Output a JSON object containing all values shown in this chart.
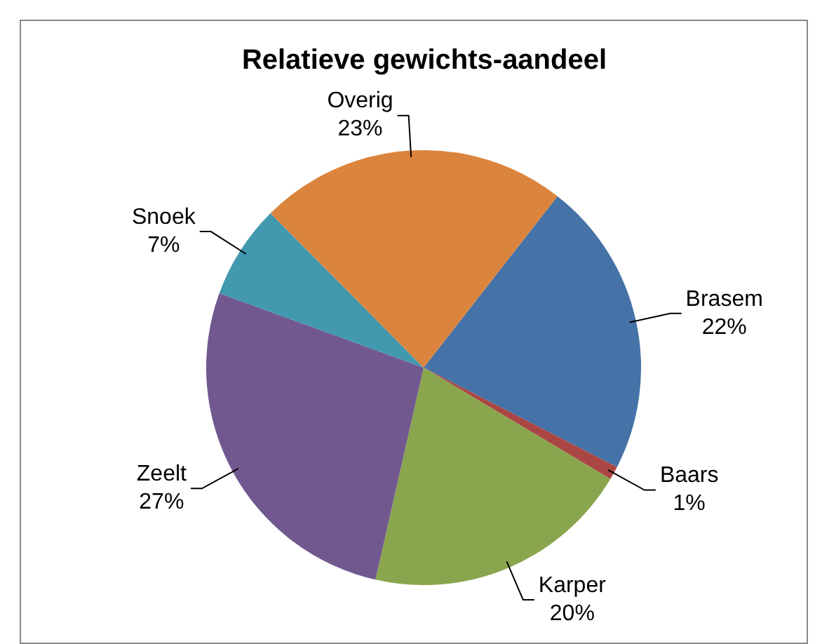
{
  "chart_data": {
    "type": "pie",
    "title": "Relatieve gewichts-aandeel",
    "categories": [
      "Brasem",
      "Baars",
      "Karper",
      "Zeelt",
      "Snoek",
      "Overig"
    ],
    "values": [
      22,
      1,
      20,
      27,
      7,
      23
    ],
    "colors": [
      "#4572a7",
      "#aa4643",
      "#89a54e",
      "#71588f",
      "#4198af",
      "#db843d"
    ],
    "value_labels": [
      "22%",
      "1%",
      "20%",
      "27%",
      "7%",
      "23%"
    ],
    "legend": false
  }
}
